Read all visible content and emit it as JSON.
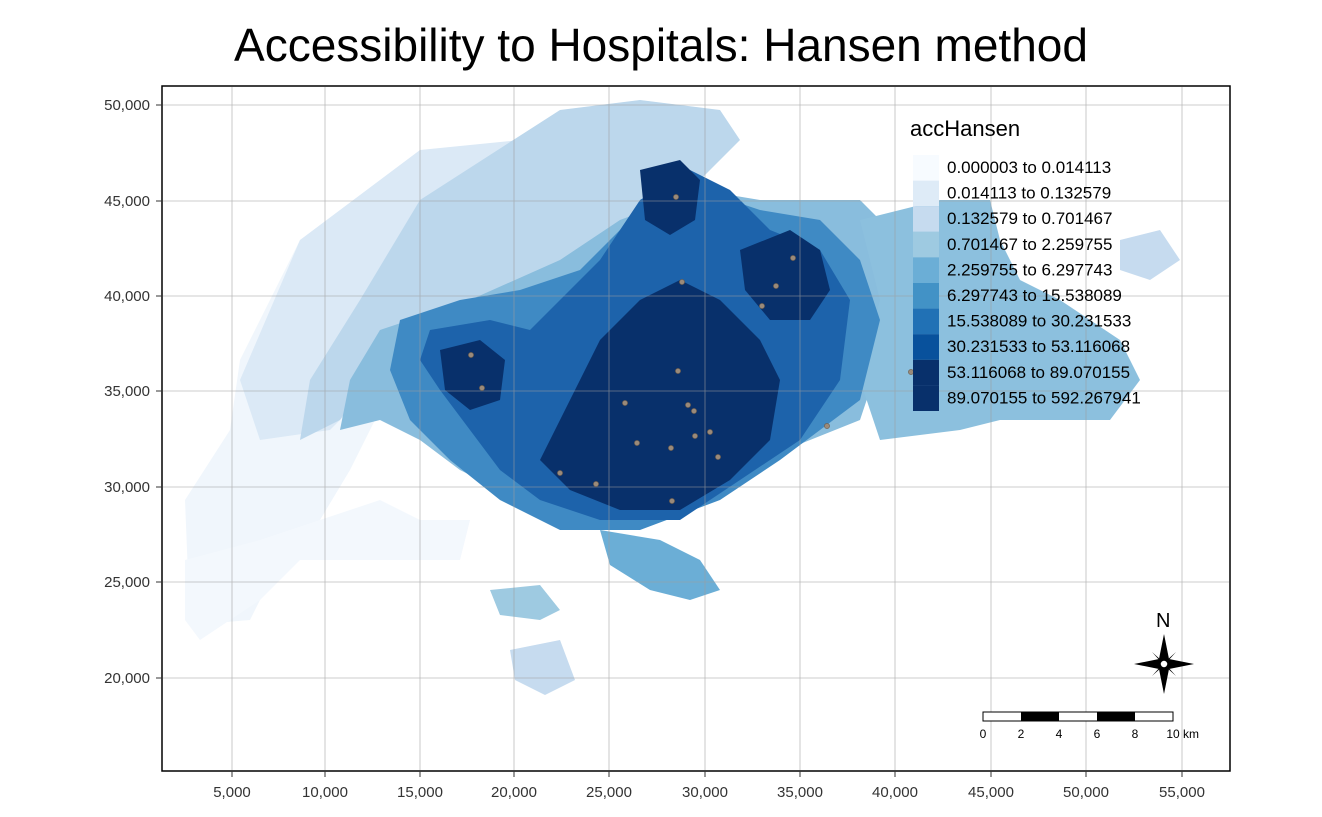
{
  "title": "Accessibility to Hospitals: Hansen method",
  "x_ticks": [
    "5,000",
    "10,000",
    "15,000",
    "20,000",
    "25,000",
    "30,000",
    "35,000",
    "40,000",
    "45,000",
    "50,000",
    "55,000"
  ],
  "y_ticks": [
    "50,000",
    "45,000",
    "40,000",
    "35,000",
    "30,000",
    "25,000",
    "20,000"
  ],
  "legend": {
    "title": "accHansen",
    "classes": [
      {
        "label": "0.000003 to 0.014113",
        "color": "#f7fbff"
      },
      {
        "label": "0.014113 to 0.132579",
        "color": "#deebf7"
      },
      {
        "label": "0.132579 to 0.701467",
        "color": "#c6dbef"
      },
      {
        "label": "0.701467 to 2.259755",
        "color": "#9ecae1"
      },
      {
        "label": "2.259755 to 6.297743",
        "color": "#6baed6"
      },
      {
        "label": "6.297743 to 15.538089",
        "color": "#4292c6"
      },
      {
        "label": "15.538089 to 30.231533",
        "color": "#2171b5"
      },
      {
        "label": "30.231533 to 53.116068",
        "color": "#08519c"
      },
      {
        "label": "53.116068 to 89.070155",
        "color": "#08306b"
      },
      {
        "label": "89.070155 to 592.267941",
        "color": "#08306b"
      }
    ]
  },
  "compass": {
    "label": "N"
  },
  "scale_bar": {
    "ticks": [
      "0",
      "2",
      "4",
      "6",
      "8",
      "10"
    ],
    "unit": "km"
  },
  "hospital_color": "#9a8a7a"
}
